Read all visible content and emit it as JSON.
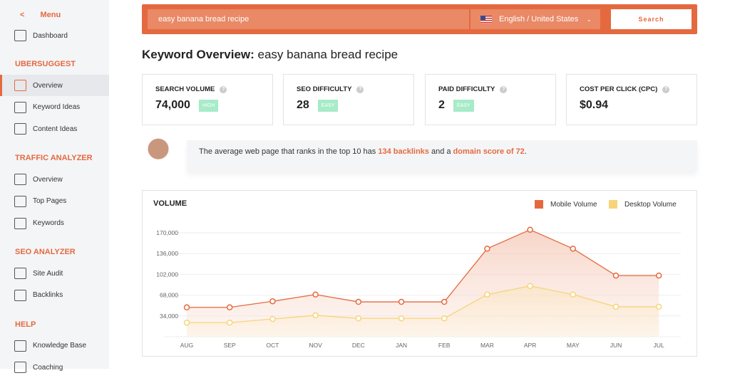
{
  "sidebar": {
    "menu_label": "Menu",
    "dashboard": "Dashboard",
    "sections": [
      {
        "title": "UBERSUGGEST",
        "items": [
          {
            "label": "Overview",
            "icon": "chart-icon",
            "active": true
          },
          {
            "label": "Keyword Ideas",
            "icon": "lightbulb-list-icon"
          },
          {
            "label": "Content Ideas",
            "icon": "content-icon"
          }
        ]
      },
      {
        "title": "TRAFFIC ANALYZER",
        "items": [
          {
            "label": "Overview",
            "icon": "magnify-wave-icon"
          },
          {
            "label": "Top Pages",
            "icon": "page-arrow-icon"
          },
          {
            "label": "Keywords",
            "icon": "search-list-icon"
          }
        ]
      },
      {
        "title": "SEO ANALYZER",
        "items": [
          {
            "label": "Site Audit",
            "icon": "eye-list-icon"
          },
          {
            "label": "Backlinks",
            "icon": "link-icon"
          }
        ]
      },
      {
        "title": "HELP",
        "items": [
          {
            "label": "Knowledge Base",
            "icon": "book-icon"
          },
          {
            "label": "Coaching",
            "icon": "coaching-icon"
          }
        ]
      }
    ]
  },
  "search": {
    "keyword": "easy banana bread recipe",
    "language": "English / United States",
    "button": "Search"
  },
  "header": {
    "prefix": "Keyword Overview:",
    "keyword": "easy banana bread recipe"
  },
  "metrics": [
    {
      "label": "SEARCH VOLUME",
      "value": "74,000",
      "badge": "HIGH"
    },
    {
      "label": "SEO DIFFICULTY",
      "value": "28",
      "badge": "EASY"
    },
    {
      "label": "PAID DIFFICULTY",
      "value": "2",
      "badge": "EASY"
    },
    {
      "label": "COST PER CLICK (CPC)",
      "value": "$0.94"
    }
  ],
  "tip": {
    "t1": "The average web page that ranks in the top 10 has ",
    "backlinks": "134 backlinks",
    "t2": " and a ",
    "score": "domain score of 72",
    "t3": "."
  },
  "colors": {
    "accent": "#e5693f",
    "mobile": "#e5693f",
    "desktop": "#f7d47a",
    "badge": "#a7ebc8"
  },
  "chart_data": {
    "type": "area",
    "title": "VOLUME",
    "categories": [
      "AUG",
      "SEP",
      "OCT",
      "NOV",
      "DEC",
      "JAN",
      "FEB",
      "MAR",
      "APR",
      "MAY",
      "JUN",
      "JUL"
    ],
    "yticks": [
      "34,000",
      "68,000",
      "102,000",
      "136,000",
      "170,000"
    ],
    "ylim": [
      0,
      170000
    ],
    "legend": "top-right",
    "grid": true,
    "series": [
      {
        "name": "Mobile Volume",
        "values": [
          48000,
          48000,
          58000,
          69000,
          57000,
          57000,
          57000,
          144000,
          175000,
          144000,
          100000,
          100000
        ]
      },
      {
        "name": "Desktop Volume",
        "values": [
          23000,
          23000,
          29000,
          35000,
          30000,
          30000,
          30000,
          69000,
          83000,
          69000,
          49000,
          49000
        ]
      }
    ]
  }
}
